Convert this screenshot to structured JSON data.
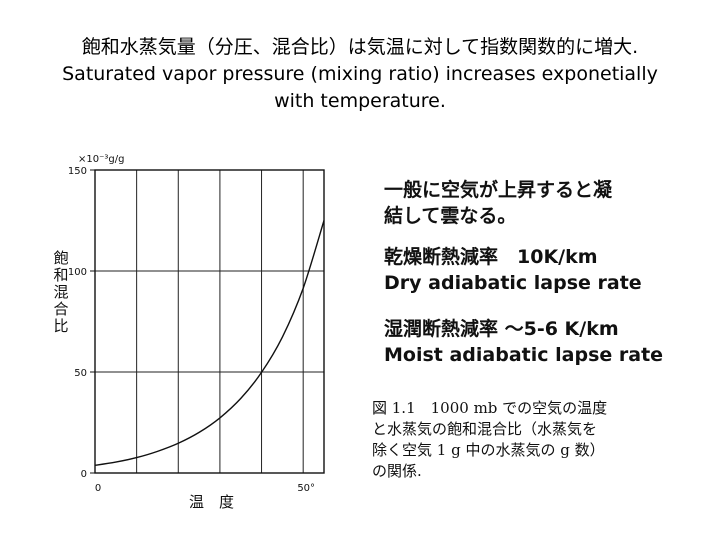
{
  "heading": {
    "line1": "飽和水蒸気量（分圧、混合比）は気温に対して指数関数的に増大.",
    "line2": "Saturated vapor pressure (mixing ratio) increases exponetially",
    "line3": "with temperature."
  },
  "notes": {
    "condensation_line1": "一般に空気が上昇すると凝",
    "condensation_line2": "結して雲なる。",
    "dry_label": "乾燥断熱減率　10K/km",
    "dry_english": "Dry adiabatic lapse rate",
    "moist_label": "湿潤断熱減率 ～5-6 K/km",
    "moist_english": "Moist adiabatic lapse rate"
  },
  "caption": {
    "line1": "図 1.1　1000 mb での空気の温度",
    "line2": "と水蒸気の飽和混合比（水蒸気を",
    "line3": "除く空気 1 g 中の水蒸気の g 数）",
    "line4": "の関係."
  },
  "chart_data": {
    "type": "line",
    "xlabel": "温　度",
    "ylabel": "飽和混合比",
    "y_unit": "×10⁻³g/g",
    "x_tick_labels": [
      "0",
      "50°"
    ],
    "y_tick_labels": [
      "0",
      "50",
      "100",
      "150"
    ],
    "xlim": [
      0,
      55
    ],
    "ylim": [
      0,
      150
    ],
    "grid": true,
    "grid_x": [
      0,
      10,
      20,
      30,
      40,
      50
    ],
    "grid_y": [
      50,
      100
    ],
    "series": [
      {
        "x": [
          0,
          5,
          10,
          15,
          20,
          25,
          30,
          35,
          40,
          45,
          50,
          55
        ],
        "values": [
          3.8,
          5.4,
          7.6,
          10.7,
          14.7,
          20.1,
          27.3,
          36.9,
          49.8,
          67.3,
          91.5,
          125.0
        ]
      }
    ]
  }
}
